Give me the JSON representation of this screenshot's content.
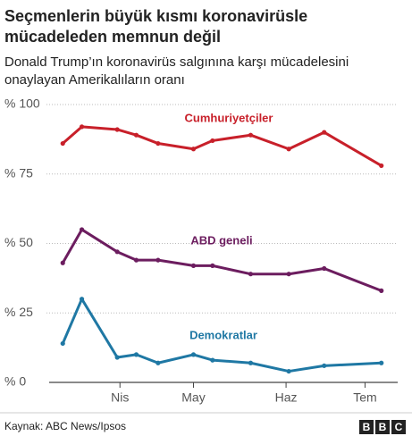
{
  "chart_data": {
    "type": "line",
    "title": [
      "Seçmenlerin büyük kısmı koronavirüsle",
      "mücadeleden memnun değil"
    ],
    "subtitle": [
      "Donald Trump’ın koronavirüs salgınına karşı mücadelesini",
      "onaylayan Amerikalıların oranı"
    ],
    "x": [
      73,
      80,
      93,
      100,
      108,
      121,
      128,
      142,
      156,
      169,
      190
    ],
    "xlim": [
      68,
      196
    ],
    "xticks": [
      {
        "value": 94,
        "label": "Nis"
      },
      {
        "value": 121,
        "label": "May"
      },
      {
        "value": 155,
        "label": "Haz"
      },
      {
        "value": 184,
        "label": "Tem"
      }
    ],
    "ylim": [
      0,
      100
    ],
    "yticks": [
      {
        "value": 0,
        "label": "% 0"
      },
      {
        "value": 25,
        "label": "% 25"
      },
      {
        "value": 50,
        "label": "% 50"
      },
      {
        "value": 75,
        "label": "% 75"
      },
      {
        "value": 100,
        "label": "% 100"
      }
    ],
    "grid": true,
    "series": [
      {
        "name": "Cumhuriyetçiler",
        "color": "#c8202a",
        "values": [
          86,
          92,
          91,
          89,
          86,
          84,
          87,
          89,
          84,
          90,
          78
        ]
      },
      {
        "name": "ABD geneli",
        "color": "#6c1d5f",
        "values": [
          43,
          55,
          47,
          44,
          44,
          42,
          42,
          39,
          39,
          41,
          33
        ]
      },
      {
        "name": "Demokratlar",
        "color": "#1f78a4",
        "values": [
          14,
          30,
          9,
          10,
          7,
          10,
          8,
          7,
          4,
          6,
          7
        ]
      }
    ],
    "source": "Kaynak: ABC News/Ipsos",
    "logo": [
      "B",
      "B",
      "C"
    ]
  }
}
